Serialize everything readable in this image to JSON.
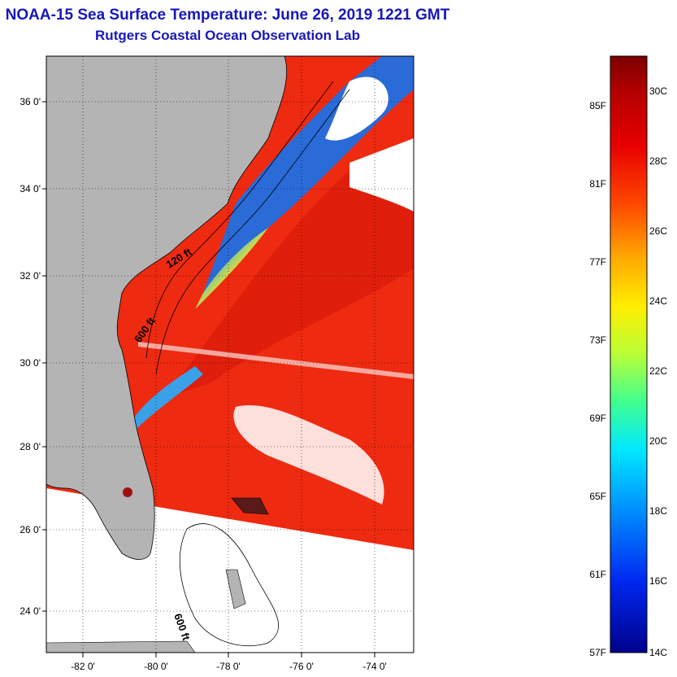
{
  "title": "NOAA-15 Sea Surface Temperature:  June 26, 2019 1221 GMT",
  "subtitle": "Rutgers Coastal Ocean Observation Lab",
  "map": {
    "lat_labels": [
      "36 0'",
      "34 0'",
      "32 0'",
      "30 0'",
      "28 0'",
      "26 0'",
      "24 0'"
    ],
    "lon_labels": [
      "-82 0'",
      "-80 0'",
      "-78 0'",
      "-76 0'",
      "-74 0'"
    ],
    "contour_labels": {
      "c120": "120 ft",
      "c600a": "600 ft",
      "c600b": "600 ft"
    },
    "colors": {
      "land": "#b4b4b4",
      "warm_water": "#ee2a10",
      "gulf_stream": "#d81a0c",
      "cool_shelf": "#2a6bd8",
      "cloud": "#ffffff"
    }
  },
  "colorbar": {
    "f_labels": [
      "85F",
      "81F",
      "77F",
      "73F",
      "69F",
      "65F",
      "61F",
      "57F"
    ],
    "c_labels": [
      "30C",
      "28C",
      "26C",
      "24C",
      "22C",
      "20C",
      "18C",
      "16C",
      "14C"
    ],
    "colors": [
      "#7a0000",
      "#c80000",
      "#ff2a00",
      "#ff8c00",
      "#ffe800",
      "#bfff30",
      "#30ff90",
      "#00e0ff",
      "#0090ff",
      "#0030ff",
      "#00008c"
    ]
  }
}
